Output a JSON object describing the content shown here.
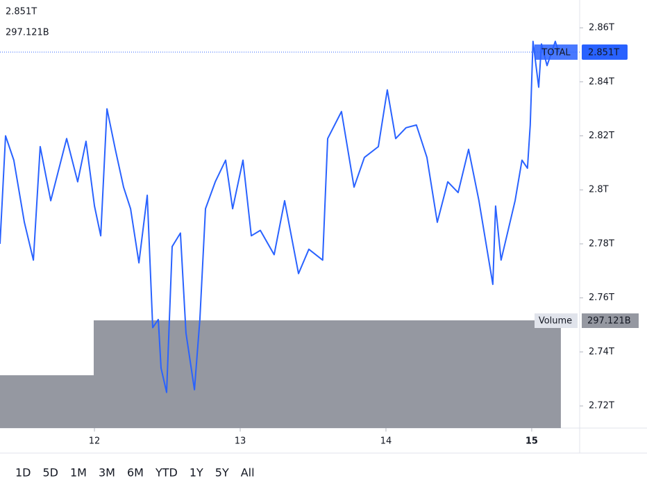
{
  "chart_data": {
    "type": "line",
    "series": [
      {
        "name": "TOTAL",
        "color": "#2962ff",
        "x": [
          11.352,
          11.39,
          11.447,
          11.519,
          11.581,
          11.628,
          11.7,
          11.809,
          11.885,
          11.942,
          12.0,
          12.043,
          12.086,
          12.143,
          12.2,
          12.248,
          12.305,
          12.362,
          12.4,
          12.438,
          12.457,
          12.495,
          12.533,
          12.59,
          12.628,
          12.686,
          12.723,
          12.762,
          12.829,
          12.9,
          12.948,
          13.019,
          13.076,
          13.138,
          13.233,
          13.305,
          13.4,
          13.471,
          13.566,
          13.6,
          13.695,
          13.781,
          13.852,
          13.948,
          14.009,
          14.067,
          14.138,
          14.209,
          14.281,
          14.352,
          14.424,
          14.495,
          14.567,
          14.638,
          14.733,
          14.752,
          14.79,
          14.886,
          14.933,
          14.971,
          14.99,
          15.009,
          15.048,
          15.067,
          15.105,
          15.162,
          15.185
        ],
        "values": [
          2.78,
          2.82,
          2.811,
          2.788,
          2.774,
          2.816,
          2.796,
          2.819,
          2.803,
          2.818,
          2.794,
          2.783,
          2.83,
          2.815,
          2.801,
          2.793,
          2.773,
          2.798,
          2.749,
          2.752,
          2.734,
          2.725,
          2.779,
          2.784,
          2.747,
          2.726,
          2.752,
          2.793,
          2.803,
          2.811,
          2.793,
          2.811,
          2.783,
          2.785,
          2.776,
          2.796,
          2.769,
          2.778,
          2.774,
          2.819,
          2.829,
          2.801,
          2.812,
          2.816,
          2.837,
          2.819,
          2.823,
          2.824,
          2.812,
          2.788,
          2.803,
          2.799,
          2.815,
          2.796,
          2.765,
          2.794,
          2.774,
          2.796,
          2.811,
          2.808,
          2.824,
          2.855,
          2.838,
          2.854,
          2.846,
          2.855,
          2.851
        ]
      }
    ],
    "price_marker": {
      "name": "TOTAL",
      "value": 2.851,
      "label": "2.851T"
    },
    "volume": {
      "name": "Volume",
      "color": "#9598a1",
      "bins": [
        11.352,
        11.995,
        15.2
      ],
      "values": [
        145.7,
        297.121
      ],
      "marker": {
        "value": 297.121,
        "label": "297.121B"
      }
    },
    "xlim": [
      11.352,
      15.329
    ],
    "xticks": [
      12,
      13,
      14,
      15
    ],
    "ylim": [
      2.7118,
      2.8703
    ],
    "yticks": [
      {
        "value": 2.72,
        "label": "2.72T"
      },
      {
        "value": 2.74,
        "label": "2.74T"
      },
      {
        "value": 2.76,
        "label": "2.76T"
      },
      {
        "value": 2.78,
        "label": "2.78T"
      },
      {
        "value": 2.8,
        "label": "2.8T"
      },
      {
        "value": 2.82,
        "label": "2.82T"
      },
      {
        "value": 2.84,
        "label": "2.84T"
      },
      {
        "value": 2.86,
        "label": "2.86T"
      }
    ],
    "y2lim": [
      0,
      1180.8
    ],
    "range_buttons": [
      "1D",
      "5D",
      "1M",
      "3M",
      "6M",
      "YTD",
      "1Y",
      "5Y",
      "All"
    ]
  }
}
